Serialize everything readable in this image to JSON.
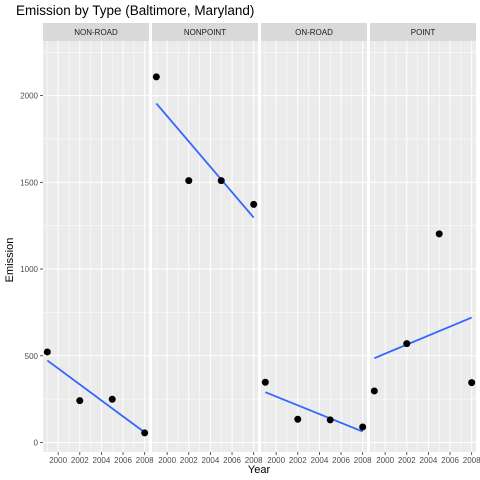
{
  "chart_data": {
    "type": "scatter",
    "title": "Emission by Type (Baltimore, Maryland)",
    "xlabel": "Year",
    "ylabel": "Emission",
    "xlim": [
      1998.6,
      2008.4
    ],
    "ylim": [
      -55,
      2315
    ],
    "x_ticks": [
      "2000",
      "2002",
      "2004",
      "2006",
      "2008"
    ],
    "y_ticks": [
      "0",
      "500",
      "1000",
      "1500",
      "2000"
    ],
    "grid": true,
    "facets": [
      {
        "name": "NON-ROAD",
        "x": [
          1999,
          2002,
          2005,
          2008
        ],
        "y": [
          522,
          241,
          249,
          55
        ],
        "trend": [
          {
            "x": 1999,
            "y": 473
          },
          {
            "x": 2008,
            "y": 58
          }
        ]
      },
      {
        "name": "NONPOINT",
        "x": [
          1999,
          2002,
          2005,
          2008
        ],
        "y": [
          2108,
          1510,
          1510,
          1373
        ],
        "trend": [
          {
            "x": 1999,
            "y": 1955
          },
          {
            "x": 2008,
            "y": 1297
          }
        ]
      },
      {
        "name": "ON-ROAD",
        "x": [
          1999,
          2002,
          2005,
          2008
        ],
        "y": [
          347,
          134,
          130,
          89
        ],
        "trend": [
          {
            "x": 1999,
            "y": 290
          },
          {
            "x": 2008,
            "y": 63
          }
        ]
      },
      {
        "name": "POINT",
        "x": [
          1999,
          2002,
          2005,
          2008
        ],
        "y": [
          297,
          570,
          1203,
          345
        ],
        "trend": [
          {
            "x": 1999,
            "y": 486
          },
          {
            "x": 2008,
            "y": 720
          }
        ]
      }
    ],
    "colors": {
      "panel_background": "#ebebeb",
      "strip_background": "#d9d9d9",
      "grid_major": "#ffffff",
      "point": "#000000",
      "trend_line": "#3366ff"
    }
  }
}
